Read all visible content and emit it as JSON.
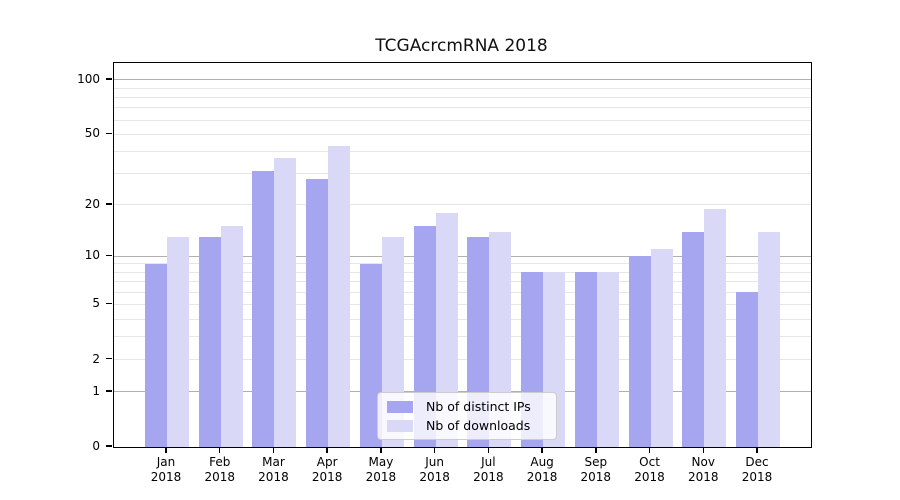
{
  "chart_data": {
    "type": "bar",
    "title": "TCGAcrcmRNA 2018",
    "categories_month": [
      "Jan",
      "Feb",
      "Mar",
      "Apr",
      "May",
      "Jun",
      "Jul",
      "Aug",
      "Sep",
      "Oct",
      "Nov",
      "Dec"
    ],
    "categories_year": "2018",
    "series": [
      {
        "name": "Nb of distinct IPs",
        "color": "#a6a6f0",
        "values": [
          9,
          13,
          31,
          28,
          9,
          15,
          13,
          8,
          8,
          10,
          14,
          6
        ]
      },
      {
        "name": "Nb of downloads",
        "color": "#d9d9f7",
        "values": [
          13,
          15,
          37,
          43,
          13,
          18,
          14,
          8,
          8,
          11,
          19,
          14
        ]
      }
    ],
    "y_axis": {
      "scale": "log1p",
      "tick_labels": [
        "0",
        "1",
        "2",
        "5",
        "10",
        "20",
        "50",
        "100"
      ],
      "ticks": [
        0,
        1,
        2,
        5,
        10,
        20,
        50,
        100
      ],
      "minor_gridlines": [
        3,
        4,
        6,
        7,
        8,
        9,
        30,
        40,
        60,
        70,
        80,
        90
      ],
      "max": 124
    },
    "grid": true,
    "legend_position": "bottom-center",
    "colors": {
      "decade_gridline": "#b0b0b0",
      "light_gridline": "#e6e6e6",
      "spine": "#000000",
      "background": "#ffffff"
    }
  }
}
